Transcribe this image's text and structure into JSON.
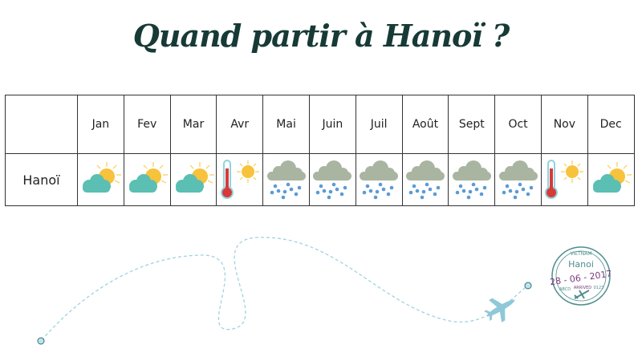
{
  "title": "Quand partir à Hanoï ?",
  "months": [
    "Jan",
    "Fev",
    "Mar",
    "Avr",
    "Mai",
    "Juin",
    "Juil",
    "Août",
    "Sept",
    "Oct",
    "Nov",
    "Dec"
  ],
  "city": "Hanoï",
  "weather": [
    "partly-cloudy-icon",
    "partly-cloudy-icon",
    "partly-cloudy-icon",
    "hot-sunny-icon",
    "rain-cloud-icon",
    "rain-cloud-icon",
    "rain-cloud-icon",
    "rain-cloud-icon",
    "rain-cloud-icon",
    "rain-cloud-icon",
    "hot-sunny-icon",
    "partly-cloudy-icon"
  ],
  "stamp": {
    "city": "Hanoi",
    "date": "28 - 06 - 2017",
    "top": "VIETNAM",
    "status": "ARRIVED",
    "left": "ABCD",
    "right": "0123"
  },
  "colors": {
    "title": "#173a36",
    "cloud": "#5bbfb3",
    "sun": "#f7c23c",
    "rain_cloud": "#a9b5a0",
    "rain": "#5b9bd5",
    "path": "#9fd3e0"
  }
}
